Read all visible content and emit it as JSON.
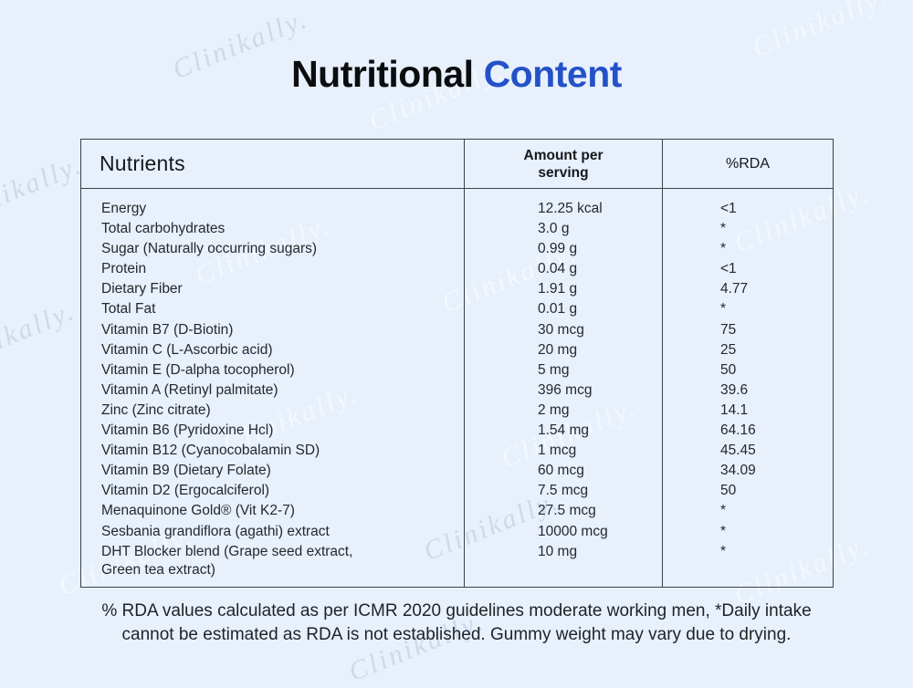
{
  "page": {
    "background_color": "#e7f0fb",
    "border_color": "#3b4148"
  },
  "title": {
    "part1": "Nutritional",
    "part2": "Content",
    "part1_color": "#0c0d0e",
    "accent_color": "#2451c7"
  },
  "watermark": {
    "text": "Clinikally."
  },
  "table": {
    "headers": [
      "Nutrients",
      "Amount per serving",
      "%RDA"
    ],
    "rows": [
      {
        "nutrient": "Energy",
        "amount": "12.25 kcal",
        "rda": "<1"
      },
      {
        "nutrient": "Total carbohydrates",
        "amount": "3.0 g",
        "rda": "*"
      },
      {
        "nutrient": "Sugar (Naturally occurring sugars)",
        "amount": "0.99 g",
        "rda": "*"
      },
      {
        "nutrient": "Protein",
        "amount": "0.04 g",
        "rda": "<1"
      },
      {
        "nutrient": "Dietary Fiber",
        "amount": "1.91 g",
        "rda": "4.77"
      },
      {
        "nutrient": "Total Fat",
        "amount": "0.01 g",
        "rda": "*"
      },
      {
        "nutrient": "Vitamin B7 (D-Biotin)",
        "amount": "30 mcg",
        "rda": "75"
      },
      {
        "nutrient": "Vitamin C (L-Ascorbic acid)",
        "amount": "20 mg",
        "rda": "25"
      },
      {
        "nutrient": "Vitamin E (D-alpha tocopherol)",
        "amount": "5 mg",
        "rda": "50"
      },
      {
        "nutrient": "Vitamin A (Retinyl palmitate)",
        "amount": "396 mcg",
        "rda": "39.6"
      },
      {
        "nutrient": "Zinc (Zinc citrate)",
        "amount": "2 mg",
        "rda": "14.1"
      },
      {
        "nutrient": "Vitamin B6 (Pyridoxine Hcl)",
        "amount": "1.54 mg",
        "rda": "64.16"
      },
      {
        "nutrient": "Vitamin B12 (Cyanocobalamin SD)",
        "amount": "1 mcg",
        "rda": "45.45"
      },
      {
        "nutrient": "Vitamin B9 (Dietary Folate)",
        "amount": "60 mcg",
        "rda": "34.09"
      },
      {
        "nutrient": "Vitamin D2 (Ergocalciferol)",
        "amount": "7.5 mcg",
        "rda": "50"
      },
      {
        "nutrient": "Menaquinone Gold® (Vit K2-7)",
        "amount": "27.5 mcg",
        "rda": "*"
      },
      {
        "nutrient": "Sesbania grandiflora (agathi) extract",
        "amount": "10000 mcg",
        "rda": "*"
      },
      {
        "nutrient": "DHT Blocker blend (Grape seed extract,\nGreen tea extract)",
        "amount": "10 mg",
        "rda": "*"
      }
    ]
  },
  "footnote": "% RDA values calculated as per ICMR 2020 guidelines moderate working men, *Daily intake\ncannot be estimated as RDA is not established. Gummy weight may vary due to drying."
}
